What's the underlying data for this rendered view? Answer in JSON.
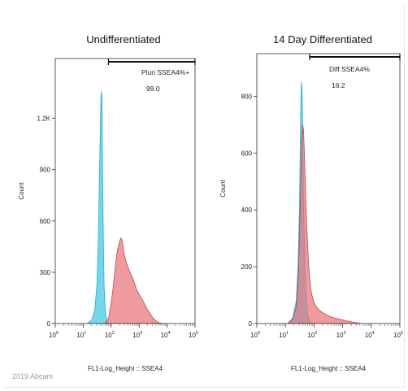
{
  "copyright": "2019 Abcam",
  "chart_data": [
    {
      "type": "area",
      "title": "Undifferentiated",
      "xlabel": "FL1-Log_Height :: SSEA4",
      "ylabel": "Count",
      "xscale": "log",
      "xlim": [
        1,
        100000
      ],
      "ylim": [
        0,
        1550
      ],
      "xticks": [
        1,
        10,
        100,
        1000,
        10000,
        100000
      ],
      "yticks": [
        {
          "value": 0,
          "label": "0"
        },
        {
          "value": 300,
          "label": "300"
        },
        {
          "value": 600,
          "label": "600"
        },
        {
          "value": 900,
          "label": "900"
        },
        {
          "value": 1200,
          "label": "1.2K"
        }
      ],
      "gate": {
        "label": "Pluri SSEA4%+",
        "value": "99.0",
        "range": [
          80,
          100000
        ]
      },
      "series": [
        {
          "color": "#5bd0e8",
          "edge": "#2aa8c8",
          "x": [
            14,
            20,
            26,
            31,
            35,
            38,
            41,
            43,
            45,
            47,
            49,
            52,
            56,
            62,
            70,
            80
          ],
          "y": [
            0,
            20,
            80,
            230,
            520,
            850,
            1150,
            1320,
            1360,
            1300,
            1000,
            560,
            220,
            70,
            15,
            0
          ]
        },
        {
          "color": "#e8737a",
          "edge": "#c0454c",
          "x": [
            60,
            80,
            100,
            120,
            140,
            160,
            180,
            200,
            220,
            240,
            260,
            280,
            300,
            340,
            380,
            440,
            500,
            600,
            700,
            800,
            1000,
            1300,
            1600,
            2000,
            2500,
            3200,
            4000,
            5000,
            7000
          ],
          "y": [
            0,
            30,
            120,
            220,
            330,
            410,
            450,
            480,
            500,
            490,
            460,
            420,
            400,
            360,
            340,
            310,
            290,
            260,
            230,
            200,
            170,
            140,
            110,
            80,
            55,
            30,
            15,
            5,
            0
          ]
        }
      ]
    },
    {
      "type": "area",
      "title": "14 Day Differentiated",
      "xlabel": "FL1-Log_Height :: SSEA4",
      "ylabel": "Count",
      "xscale": "log",
      "xlim": [
        1,
        100000
      ],
      "ylim": [
        0,
        950
      ],
      "xticks": [
        1,
        10,
        100,
        1000,
        10000,
        100000
      ],
      "yticks": [
        {
          "value": 0,
          "label": "0"
        },
        {
          "value": 200,
          "label": "200"
        },
        {
          "value": 400,
          "label": "400"
        },
        {
          "value": 600,
          "label": "600"
        },
        {
          "value": 800,
          "label": "800"
        }
      ],
      "gate": {
        "label": "Diff SSEA4%",
        "value": "16.2",
        "range": [
          70,
          100000
        ]
      },
      "series": [
        {
          "color": "#5bd0e8",
          "edge": "#2aa8c8",
          "x": [
            12,
            18,
            24,
            28,
            31,
            33,
            35,
            37,
            39,
            41,
            44,
            48,
            54,
            62,
            72,
            85
          ],
          "y": [
            0,
            20,
            80,
            220,
            420,
            650,
            820,
            850,
            780,
            600,
            380,
            200,
            80,
            25,
            5,
            0
          ]
        },
        {
          "color": "#e8737a",
          "edge": "#c0454c",
          "x": [
            12,
            18,
            24,
            28,
            31,
            34,
            37,
            40,
            43,
            46,
            50,
            55,
            62,
            70,
            80,
            95,
            110,
            130,
            160,
            200,
            260,
            350,
            500,
            800,
            1300,
            2000,
            3000,
            4500
          ],
          "y": [
            0,
            15,
            60,
            160,
            300,
            480,
            650,
            700,
            680,
            600,
            480,
            350,
            240,
            160,
            110,
            80,
            65,
            55,
            45,
            38,
            32,
            25,
            20,
            15,
            10,
            6,
            3,
            0
          ]
        }
      ]
    }
  ]
}
